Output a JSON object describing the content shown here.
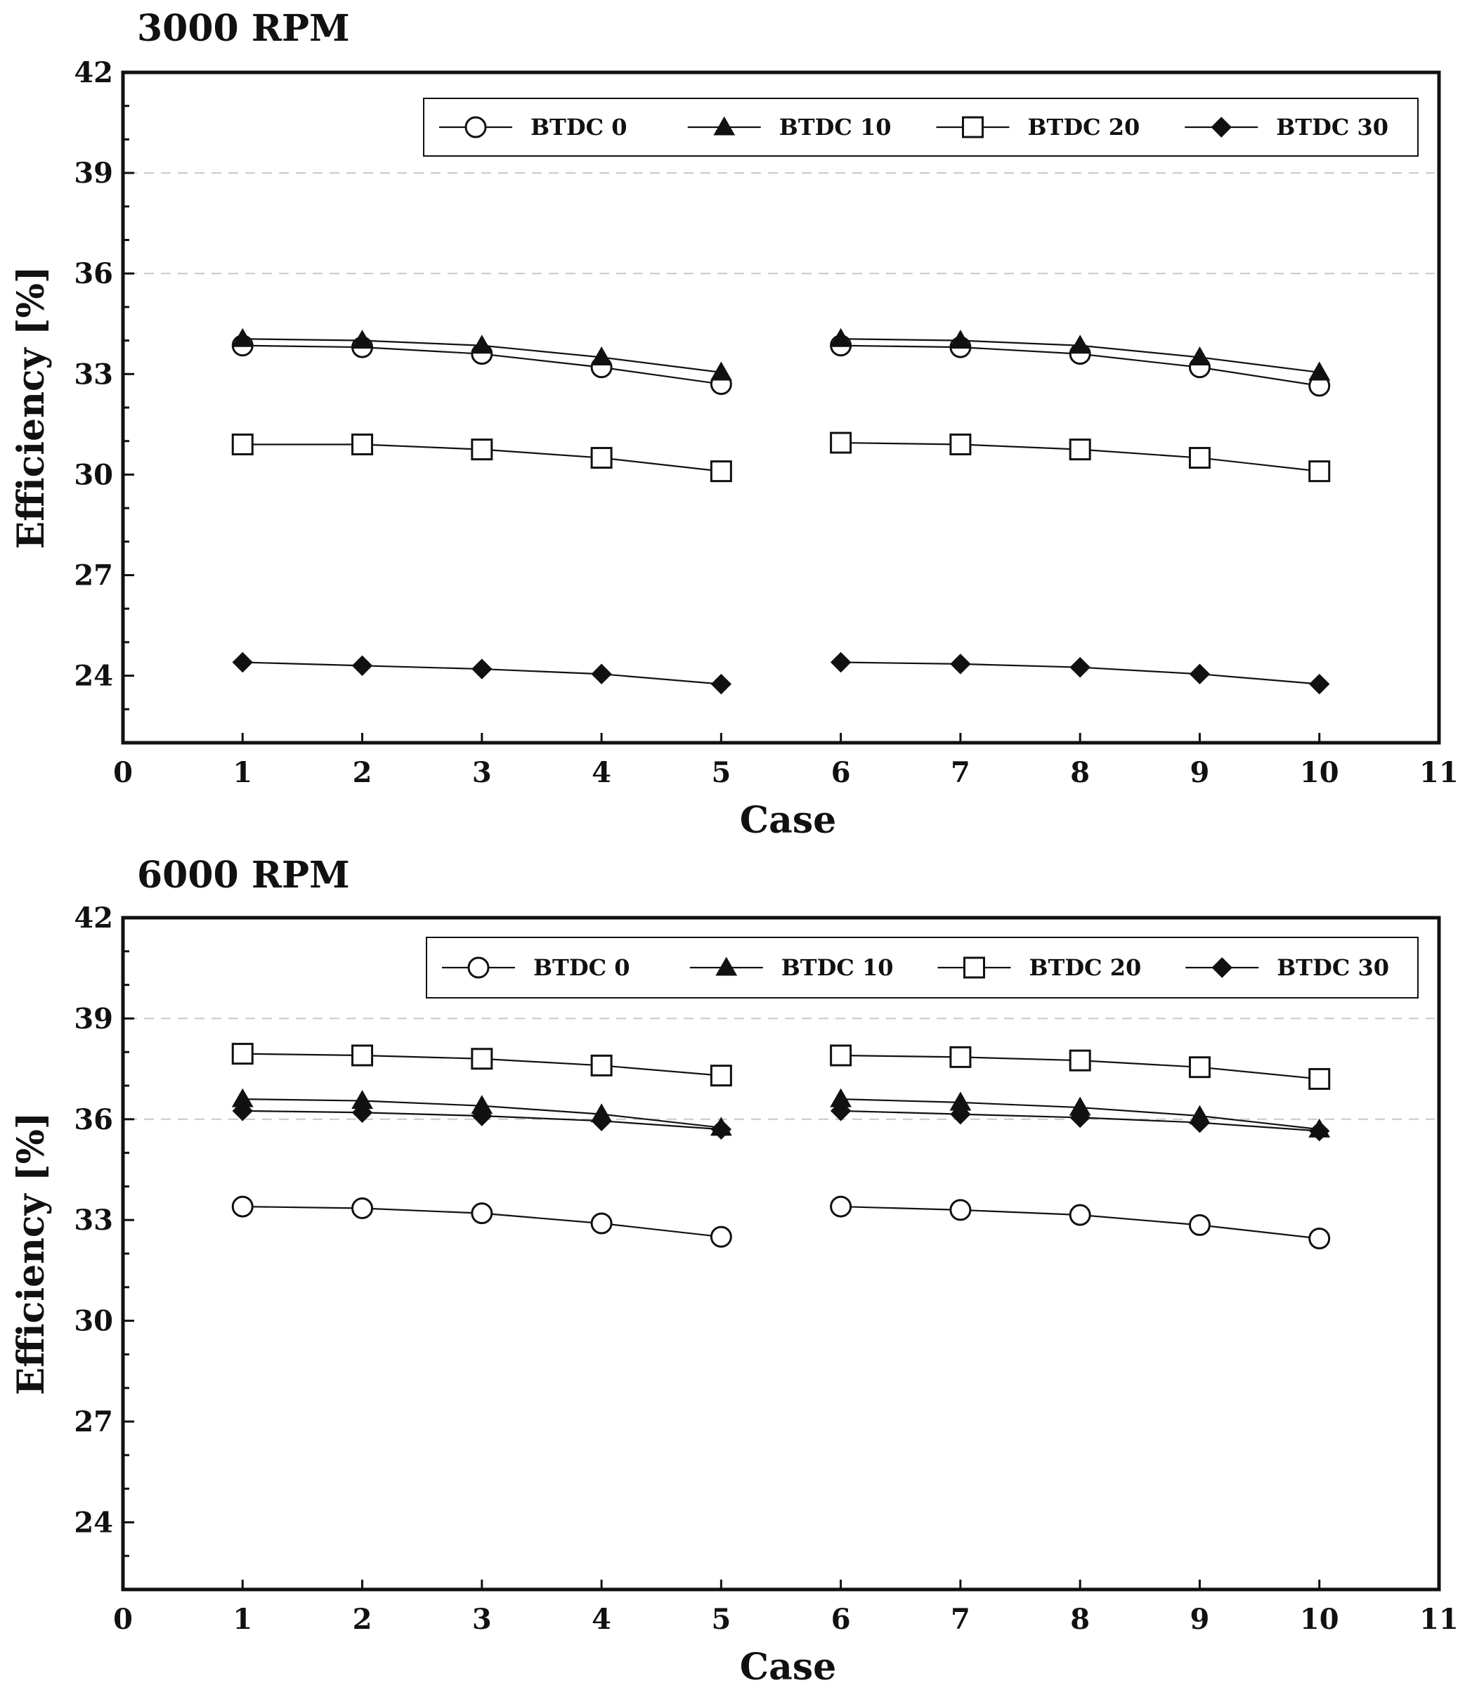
{
  "chart_data": [
    {
      "type": "line",
      "title": "3000 RPM",
      "xlabel": "Case",
      "ylabel": "Efficiency [%]",
      "xlim": [
        0,
        11
      ],
      "ylim": [
        22,
        42
      ],
      "xticks": [
        0,
        1,
        2,
        3,
        4,
        5,
        6,
        7,
        8,
        9,
        10,
        11
      ],
      "yticks": [
        24,
        27,
        30,
        33,
        36,
        39,
        42
      ],
      "dashed_gridlines": [
        36,
        39
      ],
      "legend": [
        "BTDC 0",
        "BTDC 10",
        "BTDC 20",
        "BTDC 30"
      ],
      "legend_position": "top-right",
      "series": [
        {
          "name": "BTDC 0",
          "marker": "circle",
          "segments": [
            {
              "x": [
                1,
                2,
                3,
                4,
                5
              ],
              "y": [
                33.85,
                33.8,
                33.6,
                33.2,
                32.7
              ]
            },
            {
              "x": [
                6,
                7,
                8,
                9,
                10
              ],
              "y": [
                33.85,
                33.8,
                33.6,
                33.2,
                32.65
              ]
            }
          ]
        },
        {
          "name": "BTDC 10",
          "marker": "triangle",
          "segments": [
            {
              "x": [
                1,
                2,
                3,
                4,
                5
              ],
              "y": [
                34.05,
                34.0,
                33.85,
                33.5,
                33.05
              ]
            },
            {
              "x": [
                6,
                7,
                8,
                9,
                10
              ],
              "y": [
                34.05,
                34.0,
                33.85,
                33.5,
                33.05
              ]
            }
          ]
        },
        {
          "name": "BTDC 20",
          "marker": "square",
          "segments": [
            {
              "x": [
                1,
                2,
                3,
                4,
                5
              ],
              "y": [
                30.9,
                30.9,
                30.75,
                30.5,
                30.1
              ]
            },
            {
              "x": [
                6,
                7,
                8,
                9,
                10
              ],
              "y": [
                30.95,
                30.9,
                30.75,
                30.5,
                30.1
              ]
            }
          ]
        },
        {
          "name": "BTDC 30",
          "marker": "diamond",
          "segments": [
            {
              "x": [
                1,
                2,
                3,
                4,
                5
              ],
              "y": [
                24.4,
                24.3,
                24.2,
                24.05,
                23.75
              ]
            },
            {
              "x": [
                6,
                7,
                8,
                9,
                10
              ],
              "y": [
                24.4,
                24.35,
                24.25,
                24.05,
                23.75
              ]
            }
          ]
        }
      ]
    },
    {
      "type": "line",
      "title": "6000 RPM",
      "xlabel": "Case",
      "ylabel": "Efficiency [%]",
      "xlim": [
        0,
        11
      ],
      "ylim": [
        22,
        42
      ],
      "xticks": [
        0,
        1,
        2,
        3,
        4,
        5,
        6,
        7,
        8,
        9,
        10,
        11
      ],
      "yticks": [
        24,
        27,
        30,
        33,
        36,
        39,
        42
      ],
      "dashed_gridlines": [
        36,
        39
      ],
      "legend": [
        "BTDC 0",
        "BTDC 10",
        "BTDC 20",
        "BTDC 30"
      ],
      "legend_position": "top-right",
      "series": [
        {
          "name": "BTDC 0",
          "marker": "circle",
          "segments": [
            {
              "x": [
                1,
                2,
                3,
                4,
                5
              ],
              "y": [
                33.4,
                33.35,
                33.2,
                32.9,
                32.5
              ]
            },
            {
              "x": [
                6,
                7,
                8,
                9,
                10
              ],
              "y": [
                33.4,
                33.3,
                33.15,
                32.85,
                32.45
              ]
            }
          ]
        },
        {
          "name": "BTDC 10",
          "marker": "triangle",
          "segments": [
            {
              "x": [
                1,
                2,
                3,
                4,
                5
              ],
              "y": [
                36.6,
                36.55,
                36.4,
                36.15,
                35.75
              ]
            },
            {
              "x": [
                6,
                7,
                8,
                9,
                10
              ],
              "y": [
                36.6,
                36.5,
                36.35,
                36.1,
                35.7
              ]
            }
          ]
        },
        {
          "name": "BTDC 20",
          "marker": "square",
          "segments": [
            {
              "x": [
                1,
                2,
                3,
                4,
                5
              ],
              "y": [
                37.95,
                37.9,
                37.8,
                37.6,
                37.3
              ]
            },
            {
              "x": [
                6,
                7,
                8,
                9,
                10
              ],
              "y": [
                37.9,
                37.85,
                37.75,
                37.55,
                37.2
              ]
            }
          ]
        },
        {
          "name": "BTDC 30",
          "marker": "diamond",
          "segments": [
            {
              "x": [
                1,
                2,
                3,
                4,
                5
              ],
              "y": [
                36.25,
                36.2,
                36.1,
                35.95,
                35.7
              ]
            },
            {
              "x": [
                6,
                7,
                8,
                9,
                10
              ],
              "y": [
                36.25,
                36.15,
                36.05,
                35.9,
                35.65
              ]
            }
          ]
        }
      ]
    }
  ],
  "colors": {
    "ink": "#111111",
    "grid": "#c8c8c8",
    "background": "#ffffff"
  }
}
